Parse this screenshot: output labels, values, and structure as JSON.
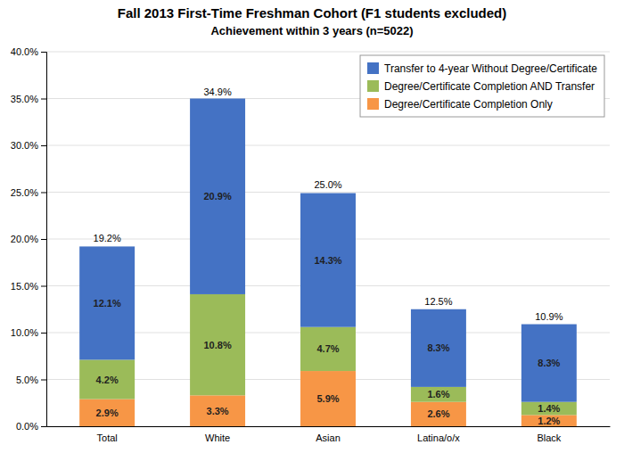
{
  "chart_data": {
    "type": "bar",
    "stacked": true,
    "title": "Fall 2013 First-Time Freshman Cohort (F1 students excluded)",
    "subtitle": "Achievement within 3 years (n=5022)",
    "categories": [
      "Total",
      "White",
      "Asian",
      "Latina/o/x",
      "Black"
    ],
    "series": [
      {
        "name": "Degree/Certificate Completion Only",
        "color": "#F79646",
        "values": [
          2.9,
          3.3,
          5.9,
          2.6,
          1.2
        ],
        "value_labels": [
          "2.9%",
          "3.3%",
          "5.9%",
          "2.6%",
          "1.2%"
        ]
      },
      {
        "name": "Degree/Certificate Completion AND Transfer",
        "color": "#9BBB59",
        "values": [
          4.2,
          10.8,
          4.7,
          1.6,
          1.4
        ],
        "value_labels": [
          "4.2%",
          "10.8%",
          "4.7%",
          "1.6%",
          "1.4%"
        ]
      },
      {
        "name": "Transfer to 4-year Without Degree/Certificate",
        "color": "#4472C4",
        "values": [
          12.1,
          20.9,
          14.3,
          8.3,
          8.3
        ],
        "value_labels": [
          "12.1%",
          "20.9%",
          "14.3%",
          "8.3%",
          "8.3%"
        ]
      }
    ],
    "totals": [
      19.2,
      34.9,
      25.0,
      12.5,
      10.9
    ],
    "total_labels": [
      "19.2%",
      "34.9%",
      "25.0%",
      "12.5%",
      "10.9%"
    ],
    "ylim": [
      0,
      40.0
    ],
    "yticks": [
      {
        "value": 0.0,
        "label": "0.0%"
      },
      {
        "value": 5.0,
        "label": "5.0%"
      },
      {
        "value": 10.0,
        "label": "10.0%"
      },
      {
        "value": 15.0,
        "label": "15.0%"
      },
      {
        "value": 20.0,
        "label": "20.0%"
      },
      {
        "value": 25.0,
        "label": "25.0%"
      },
      {
        "value": 30.0,
        "label": "30.0%"
      },
      {
        "value": 35.0,
        "label": "35.0%"
      },
      {
        "value": 40.0,
        "label": "40.0%"
      }
    ],
    "grid": true,
    "legend": "top-right",
    "data_labels": true
  }
}
